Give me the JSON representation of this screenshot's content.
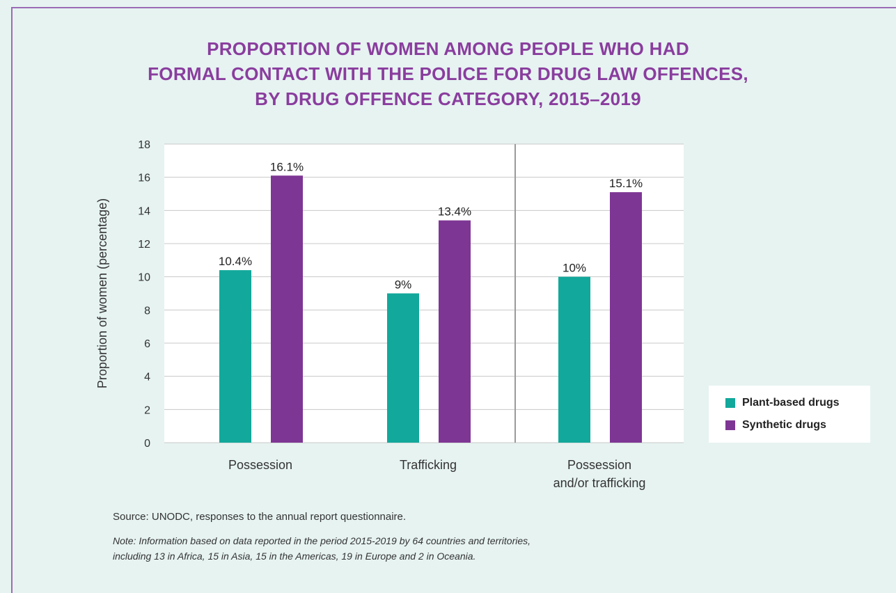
{
  "title": [
    "PROPORTION OF WOMEN AMONG PEOPLE WHO HAD",
    "FORMAL CONTACT WITH THE POLICE FOR DRUG LAW OFFENCES,",
    "BY DRUG OFFENCE CATEGORY, 2015–2019"
  ],
  "source": "Source: UNODC, responses to the annual report questionnaire.",
  "note": [
    "Note: Information based on data reported in the period 2015-2019 by 64 countries and territories,",
    "including 13 in Africa, 15 in Asia, 15 in the Americas, 19 in Europe and 2 in Oceania."
  ],
  "colors": {
    "plant": "#12a89b",
    "synthetic": "#7e3694",
    "title": "#8a3d9e",
    "frame": "#9b6bb6",
    "background": "#e6f3f1",
    "plot_background": "#ffffff",
    "gridline": "#c8c8c8"
  },
  "chart_data": {
    "type": "bar",
    "categories": [
      [
        "Possession"
      ],
      [
        "Trafficking"
      ],
      [
        "Possession",
        "and/or trafficking"
      ]
    ],
    "series": [
      {
        "name": "Plant-based drugs",
        "values": [
          10.4,
          9,
          10
        ],
        "labels": [
          "10.4%",
          "9%",
          "10%"
        ]
      },
      {
        "name": "Synthetic drugs",
        "values": [
          16.1,
          13.4,
          15.1
        ],
        "labels": [
          "16.1%",
          "13.4%",
          "15.1%"
        ]
      }
    ],
    "ylabel": "Proportion of women (percentage)",
    "ylim": [
      0,
      18
    ],
    "yticks": [
      0,
      2,
      4,
      6,
      8,
      10,
      12,
      14,
      16,
      18
    ],
    "grid": true,
    "separator_before_category": 2,
    "legend_position": "right"
  }
}
